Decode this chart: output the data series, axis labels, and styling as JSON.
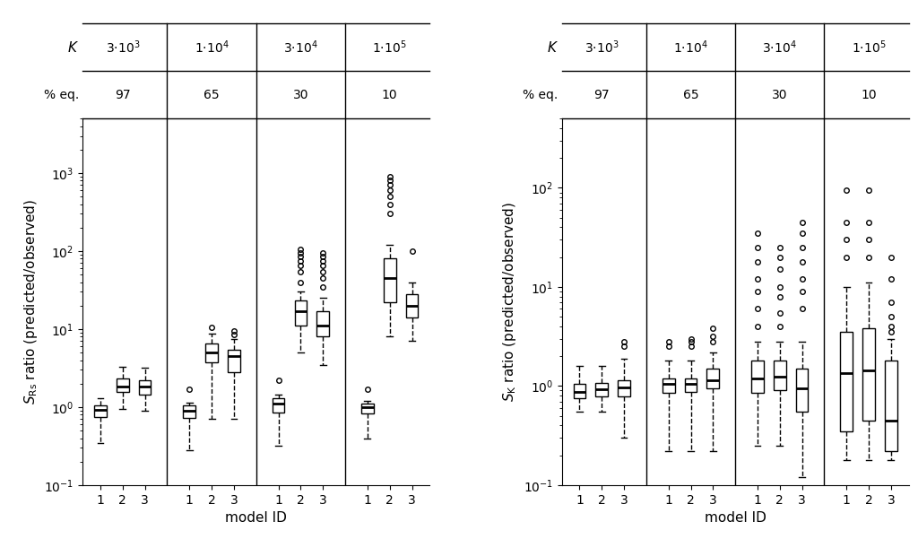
{
  "left_plot": {
    "ylabel": "$S_{\\mathrm{Rs}}$ ratio (predicted/observed)",
    "xlabel": "model ID",
    "ylim": [
      0.1,
      5000
    ],
    "boxes": [
      {
        "group": 0,
        "model": 1,
        "whislo": 0.35,
        "q1": 0.75,
        "med": 0.92,
        "q3": 1.05,
        "whishi": 1.3,
        "fliers": []
      },
      {
        "group": 0,
        "model": 2,
        "whislo": 0.95,
        "q1": 1.55,
        "med": 1.85,
        "q3": 2.3,
        "whishi": 3.3,
        "fliers": []
      },
      {
        "group": 0,
        "model": 3,
        "whislo": 0.9,
        "q1": 1.45,
        "med": 1.85,
        "q3": 2.2,
        "whishi": 3.2,
        "fliers": []
      },
      {
        "group": 1,
        "model": 1,
        "whislo": 0.28,
        "q1": 0.72,
        "med": 0.9,
        "q3": 1.05,
        "whishi": 1.15,
        "fliers": [
          1.7
        ]
      },
      {
        "group": 1,
        "model": 2,
        "whislo": 0.7,
        "q1": 3.8,
        "med": 5.0,
        "q3": 6.5,
        "whishi": 8.8,
        "fliers": [
          10.5
        ]
      },
      {
        "group": 1,
        "model": 3,
        "whislo": 0.7,
        "q1": 2.8,
        "med": 4.5,
        "q3": 5.5,
        "whishi": 7.5,
        "fliers": [
          8.5,
          9.5
        ]
      },
      {
        "group": 2,
        "model": 1,
        "whislo": 0.32,
        "q1": 0.85,
        "med": 1.1,
        "q3": 1.3,
        "whishi": 1.45,
        "fliers": [
          2.2
        ]
      },
      {
        "group": 2,
        "model": 2,
        "whislo": 5.0,
        "q1": 11.0,
        "med": 17.0,
        "q3": 23.0,
        "whishi": 30.0,
        "fliers": [
          40,
          55,
          65,
          75,
          85,
          95,
          105
        ]
      },
      {
        "group": 2,
        "model": 3,
        "whislo": 3.5,
        "q1": 8.0,
        "med": 11.0,
        "q3": 17.0,
        "whishi": 25.0,
        "fliers": [
          35,
          45,
          55,
          65,
          75,
          85,
          95
        ]
      },
      {
        "group": 3,
        "model": 1,
        "whislo": 0.4,
        "q1": 0.82,
        "med": 1.0,
        "q3": 1.1,
        "whishi": 1.2,
        "fliers": [
          1.7
        ]
      },
      {
        "group": 3,
        "model": 2,
        "whislo": 8.0,
        "q1": 22.0,
        "med": 45.0,
        "q3": 80.0,
        "whishi": 120.0,
        "fliers": [
          300,
          400,
          500,
          600,
          700,
          800,
          900
        ]
      },
      {
        "group": 3,
        "model": 3,
        "whislo": 7.0,
        "q1": 14.0,
        "med": 20.0,
        "q3": 28.0,
        "whishi": 40.0,
        "fliers": [
          100
        ]
      }
    ]
  },
  "right_plot": {
    "ylabel": "$S_{\\mathrm{K}}$ ratio (predicted/observed)",
    "xlabel": "model ID",
    "ylim": [
      0.1,
      500
    ],
    "boxes": [
      {
        "group": 0,
        "model": 1,
        "whislo": 0.55,
        "q1": 0.75,
        "med": 0.88,
        "q3": 1.05,
        "whishi": 1.6,
        "fliers": []
      },
      {
        "group": 0,
        "model": 2,
        "whislo": 0.55,
        "q1": 0.78,
        "med": 0.92,
        "q3": 1.08,
        "whishi": 1.6,
        "fliers": []
      },
      {
        "group": 0,
        "model": 3,
        "whislo": 0.3,
        "q1": 0.78,
        "med": 0.97,
        "q3": 1.15,
        "whishi": 1.9,
        "fliers": [
          2.5,
          2.8
        ]
      },
      {
        "group": 1,
        "model": 1,
        "whislo": 0.22,
        "q1": 0.85,
        "med": 1.05,
        "q3": 1.2,
        "whishi": 1.8,
        "fliers": [
          2.5,
          2.8
        ]
      },
      {
        "group": 1,
        "model": 2,
        "whislo": 0.22,
        "q1": 0.88,
        "med": 1.05,
        "q3": 1.2,
        "whishi": 1.8,
        "fliers": [
          2.5,
          2.8,
          3.0
        ]
      },
      {
        "group": 1,
        "model": 3,
        "whislo": 0.22,
        "q1": 0.95,
        "med": 1.15,
        "q3": 1.5,
        "whishi": 2.2,
        "fliers": [
          2.8,
          3.2,
          3.8
        ]
      },
      {
        "group": 2,
        "model": 1,
        "whislo": 0.25,
        "q1": 0.85,
        "med": 1.2,
        "q3": 1.8,
        "whishi": 2.8,
        "fliers": [
          4.0,
          6.0,
          9.0,
          12.0,
          18.0,
          25.0,
          35.0
        ]
      },
      {
        "group": 2,
        "model": 2,
        "whislo": 0.25,
        "q1": 0.9,
        "med": 1.25,
        "q3": 1.8,
        "whishi": 2.8,
        "fliers": [
          4.0,
          5.5,
          8.0,
          10.0,
          15.0,
          20.0,
          25.0
        ]
      },
      {
        "group": 2,
        "model": 3,
        "whislo": 0.12,
        "q1": 0.55,
        "med": 0.95,
        "q3": 1.5,
        "whishi": 2.8,
        "fliers": [
          6.0,
          9.0,
          12.0,
          18.0,
          25.0,
          35.0,
          45.0
        ]
      },
      {
        "group": 3,
        "model": 1,
        "whislo": 0.18,
        "q1": 0.35,
        "med": 1.35,
        "q3": 3.5,
        "whishi": 10.0,
        "fliers": [
          20.0,
          30.0,
          45.0,
          95.0
        ]
      },
      {
        "group": 3,
        "model": 2,
        "whislo": 0.18,
        "q1": 0.45,
        "med": 1.45,
        "q3": 3.8,
        "whishi": 11.0,
        "fliers": [
          20.0,
          30.0,
          45.0,
          95.0
        ]
      },
      {
        "group": 3,
        "model": 3,
        "whislo": 0.18,
        "q1": 0.22,
        "med": 0.45,
        "q3": 1.8,
        "whishi": 3.0,
        "fliers": [
          3.5,
          4.0,
          5.0,
          7.0,
          12.0,
          20.0
        ]
      }
    ]
  },
  "K_labels": [
    "3·10³",
    "1·10⁴",
    "3·10⁴",
    "1·10⁵"
  ],
  "peq_labels": [
    "97",
    "65",
    "30",
    "10"
  ],
  "box_width": 0.55,
  "bgcolor": "#ffffff",
  "box_facecolor": "white",
  "box_edgecolor": "black",
  "median_color": "black",
  "whisker_color": "black",
  "flier_color": "black",
  "group_starts": [
    1,
    5,
    9,
    13
  ],
  "group_centers": [
    2.0,
    6.0,
    10.0,
    14.0
  ],
  "xlim": [
    0.2,
    15.8
  ],
  "dividers": [
    4,
    8,
    12
  ]
}
